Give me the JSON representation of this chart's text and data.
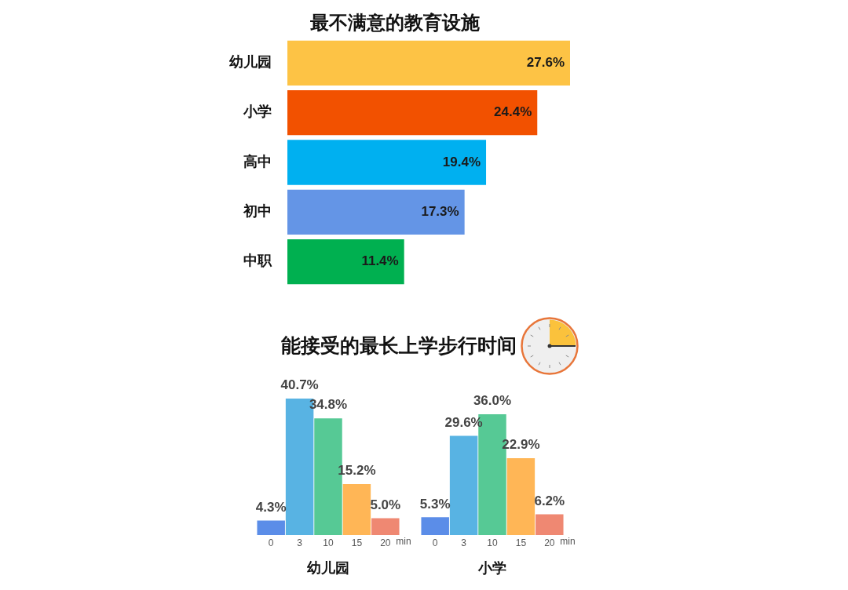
{
  "chart_data": [
    {
      "type": "bar",
      "orientation": "horizontal",
      "title": "最不满意的教育设施",
      "categories": [
        "幼儿园",
        "小学",
        "高中",
        "初中",
        "中职"
      ],
      "values": [
        27.6,
        24.4,
        19.4,
        17.3,
        11.4
      ],
      "colors": [
        "#fdc345",
        "#f25100",
        "#00b0f0",
        "#6495e6",
        "#00b050"
      ],
      "value_labels": [
        "27.6%",
        "24.4%",
        "19.4%",
        "17.3%",
        "11.4%"
      ],
      "tick_labels": "y"
    },
    {
      "type": "other",
      "title": "能接受的最长上学步行时间"
    },
    {
      "type": "bar",
      "title": "幼儿园",
      "xlabel": "min",
      "categories": [
        "0",
        "3",
        "10",
        "15",
        "20"
      ],
      "values": [
        4.3,
        40.7,
        34.8,
        15.2,
        5.0
      ],
      "colors": [
        "#5b8de8",
        "#58b3e3",
        "#56c995",
        "#ffb656",
        "#ef8872"
      ],
      "value_labels": [
        "4.3%",
        "40.7%",
        "34.8%",
        "15.2%",
        "5.0%"
      ],
      "tick_labels": "x"
    },
    {
      "type": "bar",
      "title": "小学",
      "xlabel": "min",
      "categories": [
        "0",
        "3",
        "10",
        "15",
        "20"
      ],
      "values": [
        5.3,
        29.6,
        36.0,
        22.9,
        6.2
      ],
      "colors": [
        "#5b8de8",
        "#58b3e3",
        "#56c995",
        "#ffb656",
        "#ef8872"
      ],
      "value_labels": [
        "5.3%",
        "29.6%",
        "36.0%",
        "22.9%",
        "6.2%"
      ],
      "tick_labels": "x"
    }
  ]
}
